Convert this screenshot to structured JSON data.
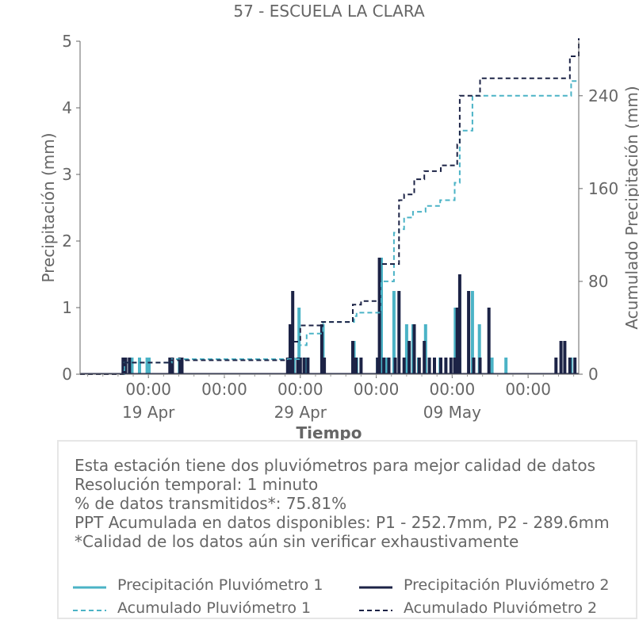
{
  "chart_data": {
    "type": "bar+line",
    "title": "57 - ESCUELA LA CLARA",
    "xlabel": "Tiempo",
    "ylabel_left": "Precipitación (mm)",
    "ylabel_right": "Acumulado Precipitación (mm)",
    "x_range": [
      "2025-04-14T12:00",
      "2025-05-17T08:00"
    ],
    "ylim_left": [
      0,
      5
    ],
    "ylim_right": [
      0,
      287
    ],
    "yticks_left": [
      "0",
      "1",
      "2",
      "3",
      "4",
      "5"
    ],
    "yticks_right": [
      "0",
      "80",
      "160",
      "240"
    ],
    "xticks": [
      {
        "time": "00:00",
        "date": "19 Apr"
      },
      {
        "time": "00:00",
        "date": ""
      },
      {
        "time": "00:00",
        "date": "29 Apr"
      },
      {
        "time": "00:00",
        "date": ""
      },
      {
        "time": "00:00",
        "date": "09 May"
      },
      {
        "time": "00:00",
        "date": ""
      }
    ],
    "grid": false,
    "series": [
      {
        "name": "Precipitación Pluviómetro 1",
        "kind": "bar",
        "color": "#4bb3c6",
        "x": [
          "2025-04-17T10:00",
          "2025-04-17T22:00",
          "2025-04-18T10:00",
          "2025-04-18T22:00",
          "2025-04-19T01:00",
          "2025-04-20T13:00",
          "2025-04-21T01:00",
          "2025-04-28T06:00",
          "2025-04-28T09:00",
          "2025-04-28T14:00",
          "2025-04-28T22:00",
          "2025-04-29T10:00",
          "2025-04-30T12:00",
          "2025-05-02T13:00",
          "2025-05-02T17:00",
          "2025-05-04T02:00",
          "2025-05-04T08:00",
          "2025-05-04T16:00",
          "2025-05-05T04:00",
          "2025-05-06T00:00",
          "2025-05-06T10:00",
          "2025-05-06T19:00",
          "2025-05-07T06:00",
          "2025-05-08T05:00",
          "2025-05-09T05:00",
          "2025-05-09T12:00",
          "2025-05-10T08:00",
          "2025-05-10T19:00",
          "2025-05-11T15:00",
          "2025-05-12T13:00",
          "2025-05-16T20:00"
        ],
        "values": [
          0.25,
          0.25,
          0.25,
          0.25,
          0.25,
          0.25,
          0.25,
          0.25,
          0.75,
          0.25,
          1.0,
          0.25,
          0.75,
          0.5,
          0.25,
          0.25,
          1.75,
          0.25,
          1.25,
          0.75,
          0.75,
          0.25,
          0.75,
          0.25,
          1.0,
          0.25,
          1.25,
          0.75,
          0.25,
          0.25,
          0.25
        ]
      },
      {
        "name": "Precipitación Pluviómetro 2",
        "kind": "bar",
        "color": "#1c2346",
        "x": [
          "2025-04-17T08:00",
          "2025-04-17T12:00",
          "2025-04-17T18:00",
          "2025-04-20T10:00",
          "2025-04-20T14:00",
          "2025-04-21T02:00",
          "2025-04-21T05:00",
          "2025-04-28T04:00",
          "2025-04-28T08:00",
          "2025-04-28T12:00",
          "2025-04-28T20:00",
          "2025-04-29T00:00",
          "2025-04-29T06:00",
          "2025-04-29T12:00",
          "2025-04-30T10:00",
          "2025-04-30T14:00",
          "2025-05-02T11:00",
          "2025-05-02T16:00",
          "2025-05-03T00:00",
          "2025-05-04T02:00",
          "2025-05-04T05:00",
          "2025-05-04T12:00",
          "2025-05-04T20:00",
          "2025-05-05T06:00",
          "2025-05-05T12:00",
          "2025-05-05T20:00",
          "2025-05-06T04:00",
          "2025-05-06T12:00",
          "2025-05-06T20:00",
          "2025-05-07T04:00",
          "2025-05-07T12:00",
          "2025-05-07T20:00",
          "2025-05-08T06:00",
          "2025-05-08T14:00",
          "2025-05-08T22:00",
          "2025-05-09T04:00",
          "2025-05-09T08:00",
          "2025-05-09T12:00",
          "2025-05-10T02:00",
          "2025-05-10T10:00",
          "2025-05-10T20:00",
          "2025-05-11T10:00",
          "2025-05-15T20:00",
          "2025-05-16T04:00",
          "2025-05-16T10:00",
          "2025-05-16T18:00",
          "2025-05-17T02:00"
        ],
        "values": [
          0.25,
          0.25,
          0.25,
          0.25,
          0.25,
          0.25,
          0.25,
          0.25,
          0.75,
          1.25,
          0.25,
          0.25,
          0.25,
          0.25,
          0.75,
          0.25,
          0.5,
          0.25,
          0.25,
          0.25,
          1.75,
          0.25,
          0.25,
          0.25,
          1.25,
          0.25,
          0.5,
          0.75,
          0.25,
          0.5,
          0.25,
          0.25,
          0.25,
          0.25,
          0.25,
          0.25,
          1.0,
          1.5,
          1.25,
          0.25,
          0.25,
          1.0,
          0.25,
          0.5,
          0.5,
          0.25,
          0.25
        ]
      },
      {
        "name": "Acumulado Pluviómetro 1",
        "kind": "step-dashed",
        "color": "#4bb3c6",
        "x": [
          "2025-04-14T12:00",
          "2025-04-17T10:00",
          "2025-04-20T13:00",
          "2025-04-28T06:00",
          "2025-04-28T22:00",
          "2025-04-29T10:00",
          "2025-04-30T12:00",
          "2025-05-02T13:00",
          "2025-05-02T17:00",
          "2025-05-04T08:00",
          "2025-05-05T04:00",
          "2025-05-05T12:00",
          "2025-05-05T20:00",
          "2025-05-06T10:00",
          "2025-05-07T06:00",
          "2025-05-08T05:00",
          "2025-05-09T04:00",
          "2025-05-09T12:00",
          "2025-05-10T08:00",
          "2025-05-16T20:00",
          "2025-05-17T08:00"
        ],
        "values": [
          0,
          10,
          13,
          13,
          25,
          35,
          45,
          50,
          53,
          80,
          122,
          125,
          135,
          140,
          145,
          150,
          165,
          210,
          240,
          252.7,
          252.7
        ]
      },
      {
        "name": "Acumulado Pluviómetro 2",
        "kind": "step-dashed",
        "color": "#1c2346",
        "x": [
          "2025-04-14T12:00",
          "2025-04-17T08:00",
          "2025-04-20T10:00",
          "2025-04-28T04:00",
          "2025-04-28T12:00",
          "2025-04-29T00:00",
          "2025-04-30T10:00",
          "2025-05-02T11:00",
          "2025-05-03T00:00",
          "2025-05-04T05:00",
          "2025-05-05T12:00",
          "2025-05-05T20:00",
          "2025-05-06T12:00",
          "2025-05-07T04:00",
          "2025-05-08T06:00",
          "2025-05-09T08:00",
          "2025-05-09T12:00",
          "2025-05-10T02:00",
          "2025-05-10T20:00",
          "2025-05-16T04:00",
          "2025-05-16T18:00",
          "2025-05-17T08:00"
        ],
        "values": [
          0,
          10,
          12,
          12,
          28,
          42,
          45,
          60,
          63,
          95,
          150,
          155,
          168,
          175,
          180,
          198,
          240,
          240,
          255,
          255,
          274,
          289.6
        ]
      }
    ]
  },
  "info": {
    "lines": [
      "Esta estación tiene dos pluviómetros para mejor calidad de datos",
      "Resolución temporal: 1 minuto",
      "% de datos transmitidos*: 75.81%",
      "PPT Acumulada en datos disponibles: P1 - 252.7mm, P2 - 289.6mm",
      "*Calidad de los datos aún sin verificar exhaustivamente"
    ]
  },
  "legend": {
    "items": [
      {
        "label": "Precipitación Pluviómetro 1",
        "color": "#4bb3c6",
        "style": "solid"
      },
      {
        "label": "Precipitación Pluviómetro 2",
        "color": "#1c2346",
        "style": "solid"
      },
      {
        "label": "Acumulado Pluviómetro 1",
        "color": "#4bb3c6",
        "style": "dashed"
      },
      {
        "label": "Acumulado Pluviómetro 2",
        "color": "#1c2346",
        "style": "dashed"
      }
    ]
  }
}
